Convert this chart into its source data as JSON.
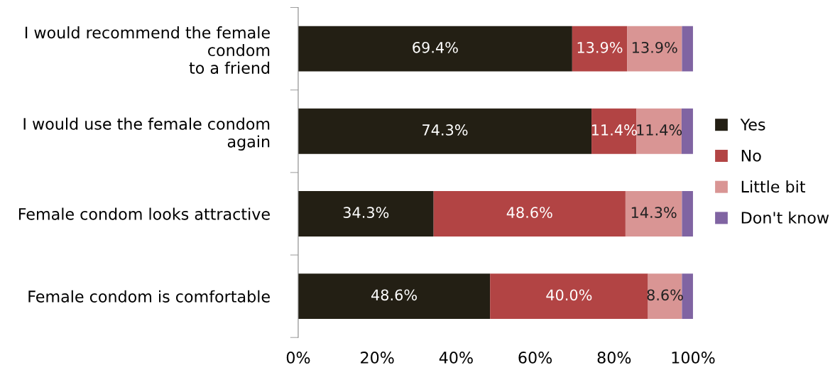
{
  "chart_data": {
    "type": "bar",
    "orientation": "horizontal",
    "stacked": true,
    "categories": [
      "I would recommend the female condom to a friend",
      "I would use the female condom again",
      "Female condom looks attractive",
      "Female condom is comfortable"
    ],
    "series": [
      {
        "name": "Yes",
        "color": "#231f14",
        "values": [
          69.4,
          74.3,
          34.3,
          48.6
        ],
        "value_labels": [
          "69.4%",
          "74.3%",
          "34.3%",
          "48.6%"
        ]
      },
      {
        "name": "No",
        "color": "#b24444",
        "values": [
          13.9,
          11.4,
          48.6,
          40.0
        ],
        "value_labels": [
          "13.9%",
          "11.4%",
          "48.6%",
          "40.0%"
        ]
      },
      {
        "name": "Little bit",
        "color": "#d99594",
        "values": [
          13.9,
          11.4,
          14.3,
          8.6
        ],
        "value_labels": [
          "13.9%",
          "11.4%",
          "14.3%",
          "8.6%"
        ]
      },
      {
        "name": "Don't know",
        "color": "#8064a2",
        "values": [
          2.8,
          2.9,
          2.8,
          2.8
        ],
        "value_labels": [
          null,
          null,
          null,
          null
        ]
      }
    ],
    "xlim": [
      0,
      100
    ],
    "xticks": [
      {
        "value": 0,
        "label": "0%"
      },
      {
        "value": 20,
        "label": "20%"
      },
      {
        "value": 40,
        "label": "40%"
      },
      {
        "value": 60,
        "label": "60%"
      },
      {
        "value": 80,
        "label": "80%"
      },
      {
        "value": 100,
        "label": "100%"
      }
    ],
    "grid": false,
    "legend": "right"
  }
}
